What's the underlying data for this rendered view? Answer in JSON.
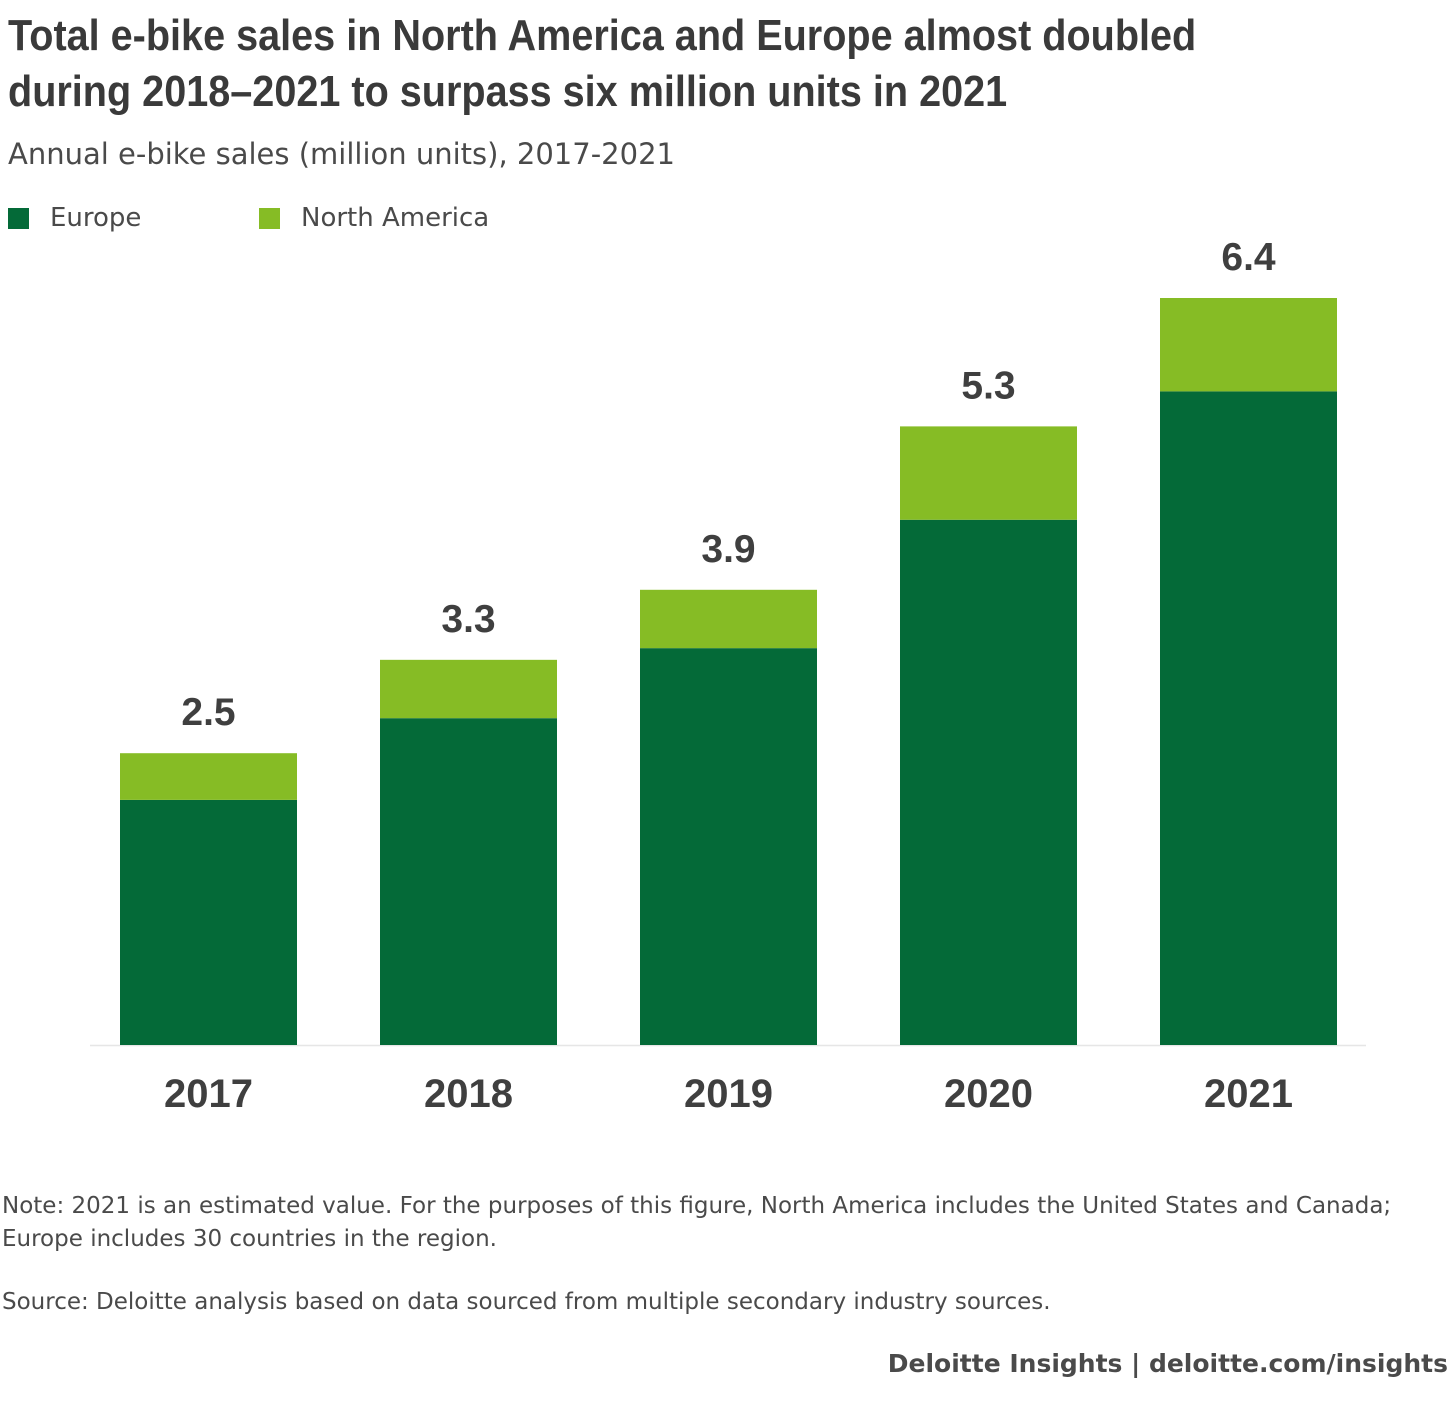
{
  "title": "Total e-bike sales in North America and Europe almost doubled during 2018–2021 to surpass six million units in 2021",
  "subtitle": "Annual e-bike sales (million units), 2017-2021",
  "legend": [
    {
      "label": "Europe",
      "color": "#046a38"
    },
    {
      "label": "North America",
      "color": "#86bc25"
    }
  ],
  "chart_data": {
    "type": "bar",
    "stacked": true,
    "categories": [
      "2017",
      "2018",
      "2019",
      "2020",
      "2021"
    ],
    "series": [
      {
        "name": "Europe",
        "color": "#046a38",
        "values": [
          2.1,
          2.8,
          3.4,
          4.5,
          5.6
        ]
      },
      {
        "name": "North America",
        "color": "#86bc25",
        "values": [
          0.4,
          0.5,
          0.5,
          0.8,
          0.8
        ]
      }
    ],
    "totals": [
      "2.5",
      "3.3",
      "3.9",
      "5.3",
      "6.4"
    ],
    "ylim": [
      0,
      6.4
    ],
    "grid": false,
    "legend_position": "top-left"
  },
  "note": "Note: 2021 is an estimated value. For the purposes of this figure, North America includes the United States and Canada; Europe includes 30 countries in the region.",
  "source": "Source: Deloitte analysis based on data sourced from multiple secondary industry sources.",
  "footer": "Deloitte Insights | deloitte.com/insights"
}
